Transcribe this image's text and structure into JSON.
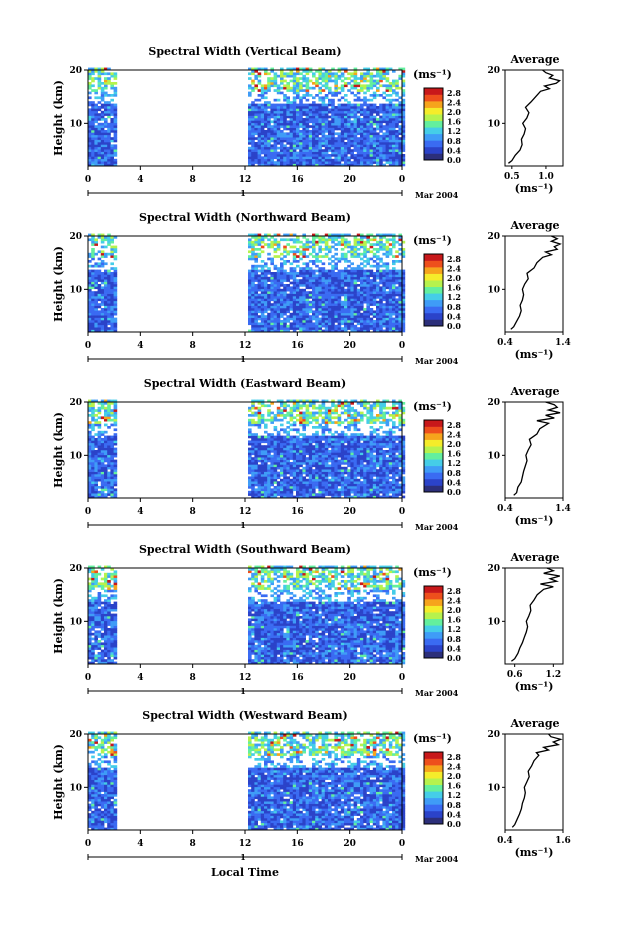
{
  "chart_data": {
    "type": "heatmap",
    "common": {
      "x_ticks": [
        "0",
        "4",
        "8",
        "12",
        "16",
        "20",
        "0"
      ],
      "x_range": [
        0,
        24
      ],
      "date_label": "Mar 2004",
      "day_marker": "1",
      "y_label": "Height (km)",
      "y_ticks": [
        "10",
        "20"
      ],
      "y_range": [
        2,
        20
      ],
      "colorbar_unit": "(ms⁻¹)",
      "colorbar_ticks": [
        "0.0",
        "0.4",
        "0.8",
        "1.2",
        "1.6",
        "2.0",
        "2.4",
        "2.8"
      ],
      "colorbar_range": [
        0.0,
        3.0
      ],
      "colormap": [
        "#2c2f7a",
        "#2b43c9",
        "#3a6bf2",
        "#3f9cf7",
        "#45cde8",
        "#63ef9e",
        "#b6f24d",
        "#f5ec2a",
        "#f6a41c",
        "#ee4f1c",
        "#c8181a"
      ],
      "data_gaps_local_time": [
        [
          2.2,
          12.2
        ]
      ],
      "profile_title": "Average",
      "profile_xlabel": "(ms⁻¹)",
      "x_axis_title": "Local Time"
    },
    "panels": [
      {
        "title": "Spectral Width (Vertical Beam)",
        "profile_xlim": [
          0.4,
          1.25
        ],
        "profile_xticks": [
          {
            "label": "0.5",
            "value": 0.5
          },
          {
            "label": "1.0",
            "value": 1.0
          }
        ],
        "profile": [
          [
            2.5,
            0.45
          ],
          [
            3,
            0.5
          ],
          [
            4,
            0.55
          ],
          [
            5,
            0.62
          ],
          [
            6,
            0.65
          ],
          [
            7,
            0.64
          ],
          [
            8,
            0.68
          ],
          [
            9,
            0.7
          ],
          [
            10,
            0.66
          ],
          [
            11,
            0.72
          ],
          [
            12,
            0.75
          ],
          [
            13,
            0.7
          ],
          [
            14,
            0.78
          ],
          [
            15,
            0.85
          ],
          [
            16,
            0.92
          ],
          [
            16.5,
            1.05
          ],
          [
            17,
            0.98
          ],
          [
            17.5,
            1.15
          ],
          [
            18,
            1.2
          ],
          [
            18.5,
            1.05
          ],
          [
            19,
            1.1
          ],
          [
            19.5,
            1.0
          ],
          [
            20,
            0.95
          ]
        ]
      },
      {
        "title": "Spectral Width (Northward Beam)",
        "profile_xlim": [
          0.4,
          1.4
        ],
        "profile_xticks": [
          {
            "label": "0.4",
            "value": 0.4
          },
          {
            "label": "1.4",
            "value": 1.4
          }
        ],
        "profile": [
          [
            2.5,
            0.5
          ],
          [
            3,
            0.55
          ],
          [
            4,
            0.6
          ],
          [
            5,
            0.65
          ],
          [
            6,
            0.68
          ],
          [
            7,
            0.66
          ],
          [
            8,
            0.7
          ],
          [
            9,
            0.72
          ],
          [
            10,
            0.7
          ],
          [
            11,
            0.74
          ],
          [
            12,
            0.8
          ],
          [
            13,
            0.78
          ],
          [
            14,
            0.9
          ],
          [
            15,
            0.95
          ],
          [
            16,
            1.05
          ],
          [
            16.5,
            1.2
          ],
          [
            17,
            1.1
          ],
          [
            17.5,
            1.3
          ],
          [
            18,
            1.25
          ],
          [
            18.5,
            1.35
          ],
          [
            19,
            1.2
          ],
          [
            19.5,
            1.3
          ],
          [
            20,
            1.2
          ]
        ]
      },
      {
        "title": "Spectral Width (Eastward Beam)",
        "profile_xlim": [
          0.4,
          1.4
        ],
        "profile_xticks": [
          {
            "label": "0.4",
            "value": 0.4
          },
          {
            "label": "1.4",
            "value": 1.4
          }
        ],
        "profile": [
          [
            2.5,
            0.55
          ],
          [
            3,
            0.6
          ],
          [
            4,
            0.62
          ],
          [
            5,
            0.68
          ],
          [
            6,
            0.7
          ],
          [
            7,
            0.72
          ],
          [
            8,
            0.75
          ],
          [
            9,
            0.78
          ],
          [
            10,
            0.76
          ],
          [
            11,
            0.8
          ],
          [
            12,
            0.85
          ],
          [
            13,
            0.82
          ],
          [
            14,
            0.95
          ],
          [
            15,
            1.0
          ],
          [
            16,
            1.15
          ],
          [
            16.5,
            0.95
          ],
          [
            17,
            1.25
          ],
          [
            17.5,
            1.1
          ],
          [
            18,
            1.35
          ],
          [
            18.5,
            1.15
          ],
          [
            19,
            1.3
          ],
          [
            19.5,
            1.25
          ],
          [
            20,
            1.1
          ]
        ]
      },
      {
        "title": "Spectral Width (Southward Beam)",
        "profile_xlim": [
          0.45,
          1.35
        ],
        "profile_xticks": [
          {
            "label": "0.6",
            "value": 0.6
          },
          {
            "label": "1.2",
            "value": 1.2
          }
        ],
        "profile": [
          [
            2.5,
            0.55
          ],
          [
            3,
            0.6
          ],
          [
            4,
            0.65
          ],
          [
            5,
            0.68
          ],
          [
            6,
            0.72
          ],
          [
            7,
            0.75
          ],
          [
            8,
            0.78
          ],
          [
            9,
            0.8
          ],
          [
            10,
            0.78
          ],
          [
            11,
            0.82
          ],
          [
            12,
            0.85
          ],
          [
            13,
            0.84
          ],
          [
            14,
            0.9
          ],
          [
            15,
            0.95
          ],
          [
            16,
            1.05
          ],
          [
            16.5,
            1.2
          ],
          [
            17,
            1.0
          ],
          [
            17.5,
            1.25
          ],
          [
            18,
            1.15
          ],
          [
            18.5,
            1.3
          ],
          [
            19,
            1.05
          ],
          [
            19.5,
            1.2
          ],
          [
            20,
            1.1
          ]
        ]
      },
      {
        "title": "Spectral Width (Westward Beam)",
        "profile_xlim": [
          0.4,
          1.6
        ],
        "profile_xticks": [
          {
            "label": "0.4",
            "value": 0.4
          },
          {
            "label": "1.6",
            "value": 1.6
          }
        ],
        "profile": [
          [
            2.5,
            0.55
          ],
          [
            3,
            0.6
          ],
          [
            4,
            0.65
          ],
          [
            5,
            0.7
          ],
          [
            6,
            0.74
          ],
          [
            7,
            0.76
          ],
          [
            8,
            0.8
          ],
          [
            9,
            0.82
          ],
          [
            10,
            0.8
          ],
          [
            11,
            0.85
          ],
          [
            12,
            0.9
          ],
          [
            13,
            0.88
          ],
          [
            14,
            0.95
          ],
          [
            15,
            1.0
          ],
          [
            16,
            1.1
          ],
          [
            16.5,
            1.05
          ],
          [
            17,
            1.3
          ],
          [
            17.5,
            1.2
          ],
          [
            18,
            1.5
          ],
          [
            18.5,
            1.4
          ],
          [
            19,
            1.55
          ],
          [
            19.5,
            1.35
          ],
          [
            20,
            1.3
          ]
        ]
      }
    ]
  }
}
